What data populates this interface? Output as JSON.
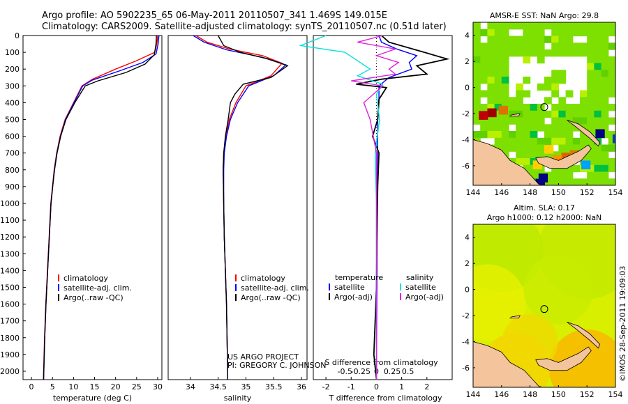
{
  "header": {
    "line1": "Argo profile: AO 5902235_65 06-May-2011 20110507_341 1.469S 149.015E",
    "line2": "Climatology: CARS2009. Satellite-adjusted climatology: synTS_20110507.nc (0.51d later)"
  },
  "colors": {
    "climatology": "#ff0000",
    "satellite": "#0000ff",
    "argo": "#000000",
    "sat_salinity": "#00e0e0",
    "argo_salinity": "#e020e0",
    "land": "#f4c49c",
    "ocean_green": "#7ee000"
  },
  "credits": {
    "project": "US ARGO PROJECT",
    "pi": "PI: GREGORY C. JOHNSON",
    "timestamp": "©IMOS 28-Sep-2011 19:09:03"
  },
  "chart_data": [
    {
      "type": "line",
      "name": "temperature",
      "xlabel": "temperature (deg C)",
      "xlim": [
        -2,
        31
      ],
      "xticks": [
        0,
        5,
        10,
        15,
        20,
        25,
        30
      ],
      "ylim": [
        0,
        2050
      ],
      "yticks": [
        0,
        100,
        200,
        300,
        400,
        500,
        600,
        700,
        800,
        900,
        1000,
        1100,
        1200,
        1300,
        1400,
        1500,
        1600,
        1700,
        1800,
        1900,
        2000
      ],
      "legend": [
        "climatology",
        "satellite-adj. clim.",
        "Argo(..raw -QC)"
      ],
      "series": [
        {
          "name": "climatology",
          "points": [
            [
              30,
              0
            ],
            [
              29.8,
              50
            ],
            [
              29.3,
              100
            ],
            [
              25,
              150
            ],
            [
              20,
              200
            ],
            [
              14.5,
              260
            ],
            [
              12,
              300
            ],
            [
              10,
              400
            ],
            [
              8,
              500
            ],
            [
              6.8,
              600
            ],
            [
              6,
              700
            ],
            [
              5.4,
              800
            ],
            [
              5,
              900
            ],
            [
              4.6,
              1000
            ],
            [
              4.2,
              1200
            ],
            [
              3.8,
              1400
            ],
            [
              3.4,
              1600
            ],
            [
              3.1,
              1800
            ],
            [
              2.9,
              2000
            ],
            [
              2.85,
              2050
            ]
          ]
        },
        {
          "name": "satellite",
          "points": [
            [
              30.3,
              0
            ],
            [
              30.1,
              50
            ],
            [
              29.6,
              110
            ],
            [
              26.5,
              160
            ],
            [
              21,
              210
            ],
            [
              14.5,
              265
            ],
            [
              12.2,
              300
            ],
            [
              10.1,
              400
            ],
            [
              8.1,
              500
            ],
            [
              6.9,
              600
            ],
            [
              6.05,
              700
            ],
            [
              5.45,
              800
            ],
            [
              5.05,
              900
            ],
            [
              4.65,
              1000
            ],
            [
              4.25,
              1200
            ],
            [
              3.85,
              1400
            ],
            [
              3.45,
              1600
            ],
            [
              3.15,
              1800
            ],
            [
              2.95,
              2000
            ],
            [
              2.9,
              2050
            ]
          ]
        },
        {
          "name": "argo",
          "points": [
            [
              29.7,
              0
            ],
            [
              29.6,
              50
            ],
            [
              29.2,
              115
            ],
            [
              27,
              170
            ],
            [
              22.5,
              220
            ],
            [
              15.8,
              270
            ],
            [
              12.8,
              300
            ],
            [
              10.3,
              400
            ],
            [
              8.2,
              500
            ],
            [
              6.95,
              600
            ],
            [
              6.1,
              700
            ],
            [
              5.5,
              800
            ],
            [
              5.05,
              900
            ],
            [
              4.65,
              1000
            ],
            [
              4.25,
              1200
            ],
            [
              3.85,
              1400
            ],
            [
              3.45,
              1600
            ],
            [
              3.15,
              1800
            ],
            [
              2.95,
              2000
            ],
            [
              2.9,
              2050
            ]
          ]
        }
      ]
    },
    {
      "type": "line",
      "name": "salinity",
      "xlabel": "salinity",
      "xlim": [
        33.6,
        36.1
      ],
      "xticks": [
        34,
        34.5,
        35,
        35.5,
        36
      ],
      "ylim": [
        0,
        2050
      ],
      "legend": [
        "climatology",
        "satellite-adj. clim.",
        "Argo(..raw -QC)"
      ],
      "series": [
        {
          "name": "climatology",
          "points": [
            [
              34.1,
              0
            ],
            [
              34.3,
              40
            ],
            [
              34.7,
              80
            ],
            [
              35.3,
              120
            ],
            [
              35.65,
              165
            ],
            [
              35.45,
              240
            ],
            [
              35.0,
              300
            ],
            [
              34.82,
              400
            ],
            [
              34.7,
              500
            ],
            [
              34.64,
              600
            ],
            [
              34.6,
              700
            ],
            [
              34.59,
              800
            ],
            [
              34.6,
              1000
            ],
            [
              34.61,
              1200
            ],
            [
              34.63,
              1400
            ],
            [
              34.65,
              1600
            ],
            [
              34.66,
              1800
            ],
            [
              34.67,
              2000
            ],
            [
              34.67,
              2050
            ]
          ]
        },
        {
          "name": "satellite",
          "points": [
            [
              34.05,
              0
            ],
            [
              34.25,
              40
            ],
            [
              34.65,
              85
            ],
            [
              35.3,
              130
            ],
            [
              35.72,
              175
            ],
            [
              35.5,
              240
            ],
            [
              35.05,
              300
            ],
            [
              34.85,
              400
            ],
            [
              34.72,
              500
            ],
            [
              34.65,
              600
            ],
            [
              34.61,
              700
            ],
            [
              34.6,
              800
            ],
            [
              34.6,
              1000
            ],
            [
              34.61,
              1200
            ],
            [
              34.63,
              1400
            ],
            [
              34.65,
              1600
            ],
            [
              34.66,
              1800
            ],
            [
              34.67,
              2000
            ],
            [
              34.67,
              2050
            ]
          ]
        },
        {
          "name": "argo",
          "points": [
            [
              34.5,
              0
            ],
            [
              34.6,
              60
            ],
            [
              34.9,
              100
            ],
            [
              35.4,
              140
            ],
            [
              35.75,
              180
            ],
            [
              35.45,
              250
            ],
            [
              34.95,
              290
            ],
            [
              34.8,
              350
            ],
            [
              34.72,
              400
            ],
            [
              34.68,
              500
            ],
            [
              34.63,
              600
            ],
            [
              34.6,
              700
            ],
            [
              34.59,
              800
            ],
            [
              34.6,
              1000
            ],
            [
              34.61,
              1200
            ],
            [
              34.63,
              1400
            ],
            [
              34.65,
              1600
            ],
            [
              34.66,
              1800
            ],
            [
              34.67,
              2000
            ],
            [
              34.67,
              2050
            ]
          ]
        }
      ]
    },
    {
      "type": "line",
      "name": "differences",
      "xlabel_t": "T difference from climatology",
      "xlabel_s": "S difference from climatology",
      "xlim": [
        -2.5,
        3.0
      ],
      "xticks": [
        -2,
        -1,
        0,
        1,
        2
      ],
      "xticks_s": [
        -0.5,
        -0.25,
        0,
        0.25,
        0.5
      ],
      "ylim": [
        0,
        2050
      ],
      "legend_titles": [
        "temperature",
        "salinity"
      ],
      "legend": [
        "satellite",
        "Argo(-adj)",
        "satellite",
        "Argo(-adj)"
      ],
      "series": [
        {
          "name": "T satellite",
          "points": [
            [
              0.1,
              0
            ],
            [
              0.2,
              40
            ],
            [
              0.8,
              80
            ],
            [
              1.6,
              120
            ],
            [
              1.3,
              160
            ],
            [
              1.4,
              200
            ],
            [
              0.5,
              250
            ],
            [
              0.1,
              300
            ],
            [
              0.1,
              400
            ],
            [
              0.05,
              500
            ],
            [
              0.05,
              700
            ],
            [
              0.03,
              1000
            ],
            [
              0.02,
              1500
            ],
            [
              0,
              2050
            ]
          ]
        },
        {
          "name": "T argo",
          "points": [
            [
              0.2,
              0
            ],
            [
              0.5,
              40
            ],
            [
              1.9,
              100
            ],
            [
              2.8,
              140
            ],
            [
              1.6,
              180
            ],
            [
              2.0,
              230
            ],
            [
              0.2,
              260
            ],
            [
              -0.8,
              290
            ],
            [
              0.4,
              310
            ],
            [
              0.1,
              380
            ],
            [
              0.05,
              500
            ],
            [
              -0.15,
              600
            ],
            [
              0.1,
              700
            ],
            [
              0.05,
              900
            ],
            [
              0.02,
              1200
            ],
            [
              0,
              1500
            ],
            [
              -0.1,
              1900
            ],
            [
              0,
              2050
            ]
          ]
        },
        {
          "name": "S satellite",
          "points": [
            [
              -0.8,
              0
            ],
            [
              -1.2,
              60
            ],
            [
              -0.5,
              100
            ],
            [
              -0.3,
              150
            ],
            [
              -0.1,
              200
            ],
            [
              -0.3,
              240
            ],
            [
              0.1,
              290
            ],
            [
              0,
              350
            ],
            [
              0.05,
              500
            ],
            [
              -0.02,
              700
            ],
            [
              0,
              1000
            ],
            [
              0,
              1500
            ],
            [
              0,
              2050
            ]
          ]
        },
        {
          "name": "S argo",
          "points": [
            [
              0.1,
              0
            ],
            [
              -0.3,
              40
            ],
            [
              0.3,
              80
            ],
            [
              0,
              120
            ],
            [
              0.35,
              160
            ],
            [
              0.2,
              200
            ],
            [
              0.3,
              230
            ],
            [
              -0.4,
              270
            ],
            [
              0.1,
              300
            ],
            [
              -0.2,
              400
            ],
            [
              -0.1,
              500
            ],
            [
              0,
              700
            ],
            [
              0,
              1000
            ],
            [
              0,
              1500
            ],
            [
              0,
              2050
            ]
          ]
        }
      ]
    },
    {
      "type": "heatmap",
      "name": "sst_map",
      "title": "AMSR-E SST: NaN Argo: 29.8",
      "xlim": [
        144,
        154
      ],
      "ylim": [
        -7.5,
        5
      ],
      "xticks": [
        144,
        146,
        148,
        150,
        152,
        154
      ],
      "yticks": [
        -6,
        -4,
        -2,
        0,
        2,
        4
      ],
      "marker": [
        149,
        -1.5
      ]
    },
    {
      "type": "heatmap",
      "name": "sla_map",
      "title_line1": "Altim. SLA: 0.17",
      "title_line2": "Argo h1000: 0.12 h2000: NaN",
      "xlim": [
        144,
        154
      ],
      "ylim": [
        -7.5,
        5
      ],
      "xticks": [
        144,
        146,
        148,
        150,
        152,
        154
      ],
      "yticks": [
        -6,
        -4,
        -2,
        0,
        2,
        4
      ],
      "marker": [
        149,
        -1.5
      ]
    }
  ]
}
